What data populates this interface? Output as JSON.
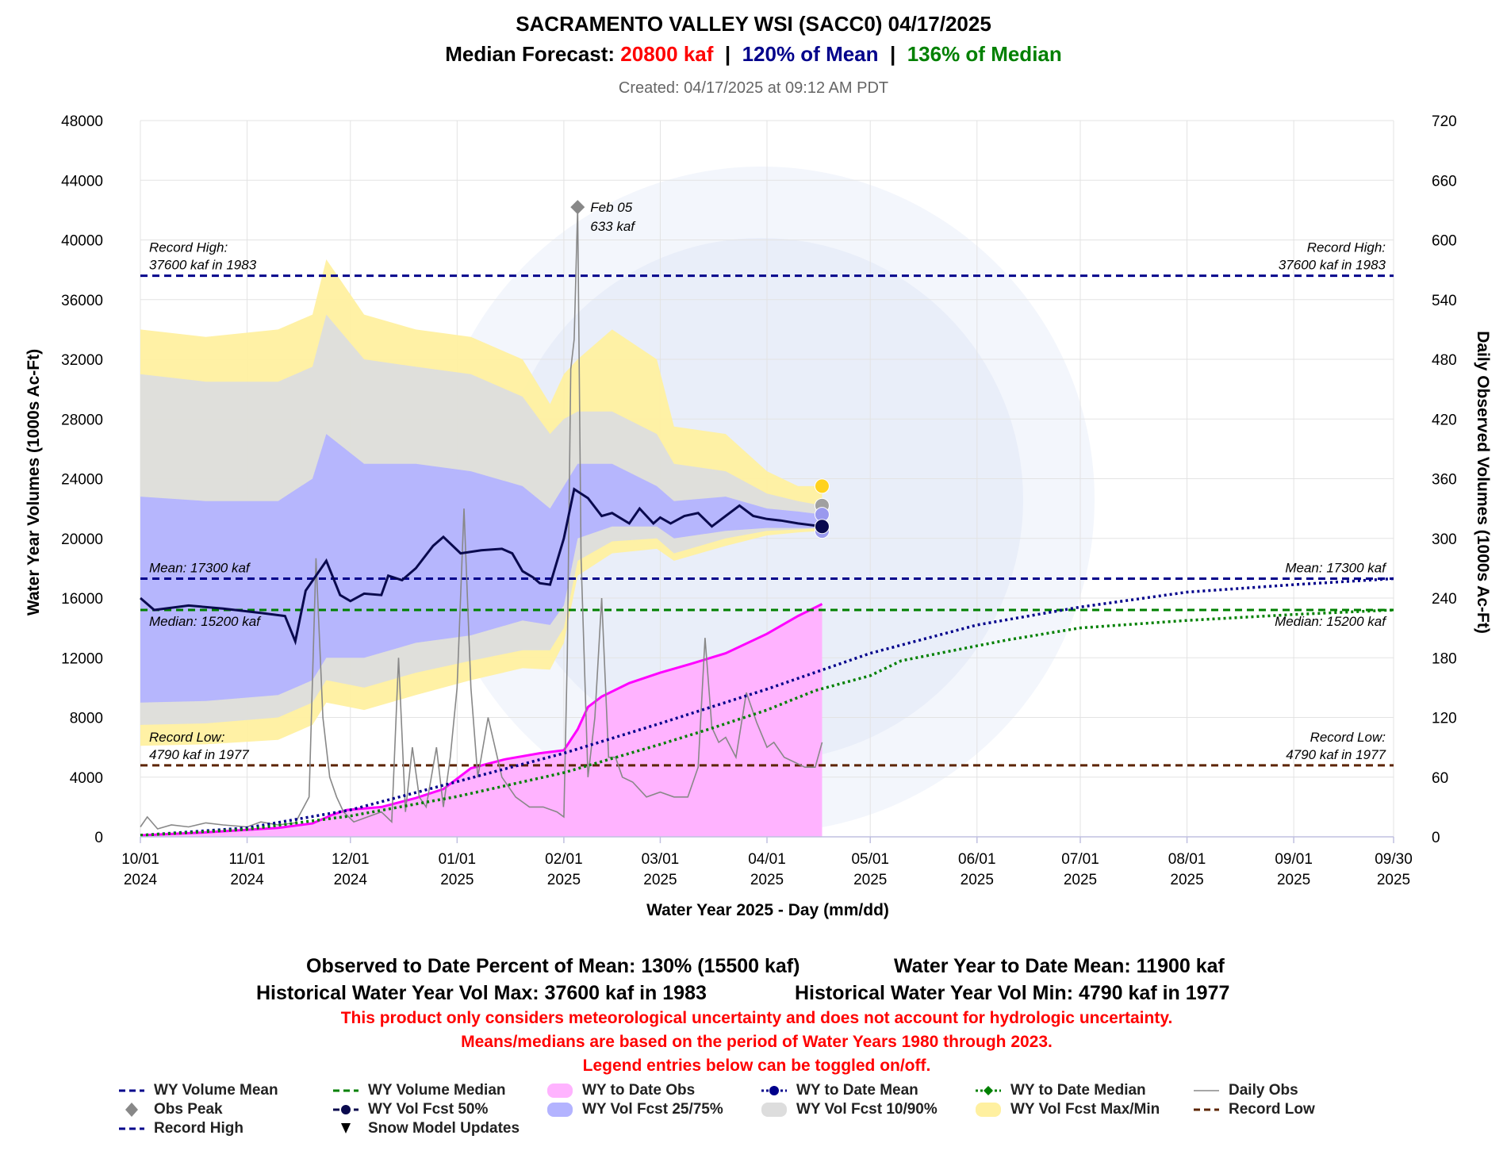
{
  "header": {
    "title": "SACRAMENTO VALLEY WSI (SACC0)  04/17/2025",
    "forecast_prefix": "Median Forecast: ",
    "forecast_value": "20800 kaf",
    "separator": "  |  ",
    "pct_mean": "120% of Mean",
    "pct_median": "136% of Median",
    "created": "Created: 04/17/2025 at 09:12 AM PDT"
  },
  "colors": {
    "forecast_red": "#ff0000",
    "mean_blue": "#00008b",
    "median_green": "#008000",
    "wy_to_date_obs": "#ff00ff",
    "wy_to_date_obs_fill": "#ffb3ff",
    "band_25_75": "#b3b3ff",
    "band_10_90": "#dddddd",
    "band_max_min": "#fff0a0",
    "record_low": "#5c2400",
    "daily_obs": "#888888",
    "fcst_50": "#0a0a4e"
  },
  "summary": {
    "line1a": "Observed to Date Percent of Mean: 130% (15500 kaf)",
    "line1b": "Water Year to Date Mean: 11900 kaf",
    "line2a": "Historical Water Year Vol Max: 37600 kaf in 1983",
    "line2b": "Historical Water Year Vol Min: 4790 kaf in 1977",
    "note1": "This product only considers meteorological uncertainty and does not account for hydrologic uncertainty.",
    "note2": "Means/medians are based on the period of Water Years 1980 through 2023.",
    "note3": "Legend entries below can be toggled on/off."
  },
  "legend": [
    {
      "label": "WY Volume Mean",
      "icon": "dashed-line",
      "color": "#00008b"
    },
    {
      "label": "WY Volume Median",
      "icon": "dashed-line",
      "color": "#008000"
    },
    {
      "label": "WY to Date Obs",
      "icon": "area",
      "color": "#ffb3ff"
    },
    {
      "label": "WY to Date Mean",
      "icon": "dotted-line-dot",
      "color": "#00008b"
    },
    {
      "label": "WY to Date Median",
      "icon": "dotted-line-diamond",
      "color": "#008000"
    },
    {
      "label": "Daily Obs",
      "icon": "thin-line",
      "color": "#888888"
    },
    {
      "label": "Obs Peak",
      "icon": "diamond",
      "color": "#888888"
    },
    {
      "label": "WY Vol Fcst 50%",
      "icon": "dashed-line-dot",
      "color": "#0a0a4e"
    },
    {
      "label": "WY Vol Fcst 25/75%",
      "icon": "area",
      "color": "#b3b3ff"
    },
    {
      "label": "WY Vol Fcst 10/90%",
      "icon": "area",
      "color": "#dddddd"
    },
    {
      "label": "WY Vol Fcst Max/Min",
      "icon": "area",
      "color": "#fff0a0"
    },
    {
      "label": "Record Low",
      "icon": "dashed-line",
      "color": "#5c2400"
    },
    {
      "label": "Record High",
      "icon": "dashed-line",
      "color": "#00008b"
    },
    {
      "label": "Snow Model Updates",
      "icon": "triangle-down",
      "color": "#000000"
    }
  ],
  "chart_data": {
    "type": "line",
    "title": "SACRAMENTO VALLEY WSI (SACC0)  04/17/2025",
    "xlabel": "Water Year 2025 - Day (mm/dd)",
    "ylabel": "Water Year Volumes (1000s Ac-Ft)",
    "y2label": "Daily Observed Volumes (1000s Ac-Ft)",
    "xlim": [
      "2024-10-01",
      "2025-09-30"
    ],
    "ylim": [
      0,
      48000
    ],
    "y2lim": [
      0,
      720
    ],
    "y_ticks": [
      0,
      4000,
      8000,
      12000,
      16000,
      20000,
      24000,
      28000,
      32000,
      36000,
      40000,
      44000,
      48000
    ],
    "y2_ticks": [
      0,
      60,
      120,
      180,
      240,
      300,
      360,
      420,
      480,
      540,
      600,
      660,
      720
    ],
    "x_ticks": [
      {
        "date": "2024-10-01",
        "l1": "10/01",
        "l2": "2024"
      },
      {
        "date": "2024-11-01",
        "l1": "11/01",
        "l2": "2024"
      },
      {
        "date": "2024-12-01",
        "l1": "12/01",
        "l2": "2024"
      },
      {
        "date": "2025-01-01",
        "l1": "01/01",
        "l2": "2025"
      },
      {
        "date": "2025-02-01",
        "l1": "02/01",
        "l2": "2025"
      },
      {
        "date": "2025-03-01",
        "l1": "03/01",
        "l2": "2025"
      },
      {
        "date": "2025-04-01",
        "l1": "04/01",
        "l2": "2025"
      },
      {
        "date": "2025-05-01",
        "l1": "05/01",
        "l2": "2025"
      },
      {
        "date": "2025-06-01",
        "l1": "06/01",
        "l2": "2025"
      },
      {
        "date": "2025-07-01",
        "l1": "07/01",
        "l2": "2025"
      },
      {
        "date": "2025-08-01",
        "l1": "08/01",
        "l2": "2025"
      },
      {
        "date": "2025-09-01",
        "l1": "09/01",
        "l2": "2025"
      },
      {
        "date": "2025-09-30",
        "l1": "09/30",
        "l2": "2025"
      }
    ],
    "grid": true,
    "reference_lines": [
      {
        "name": "Record High",
        "value": 37600,
        "color": "#00008b",
        "label1": "Record High:",
        "label2": "37600 kaf in 1983"
      },
      {
        "name": "Mean",
        "value": 17300,
        "color": "#00008b",
        "label1": "Mean: 17300 kaf",
        "label2": ""
      },
      {
        "name": "Median",
        "value": 15200,
        "color": "#008000",
        "label1": "Median: 15200 kaf",
        "label2": ""
      },
      {
        "name": "Record Low",
        "value": 4790,
        "color": "#5c2400",
        "label1": "Record Low:",
        "label2": "4790 kaf in 1977"
      }
    ],
    "obs_peak": {
      "date": "2025-02-05",
      "value": 633,
      "label1": "Feb 05",
      "label2": "633 kaf"
    },
    "series": [
      {
        "name": "WY Vol Fcst Max/Min",
        "kind": "band",
        "x": [
          "2024-10-01",
          "2024-10-20",
          "2024-11-10",
          "2024-11-20",
          "2024-11-24",
          "2024-12-05",
          "2024-12-20",
          "2025-01-05",
          "2025-01-20",
          "2025-01-28",
          "2025-02-01",
          "2025-02-05",
          "2025-02-15",
          "2025-02-28",
          "2025-03-05",
          "2025-03-20",
          "2025-04-01",
          "2025-04-10",
          "2025-04-17"
        ],
        "high": [
          34000,
          33500,
          34000,
          35000,
          38700,
          35000,
          34000,
          33500,
          32000,
          29000,
          31000,
          32000,
          34000,
          32000,
          27500,
          27000,
          24500,
          23500,
          23500
        ],
        "low": [
          6100,
          6200,
          6500,
          7500,
          9000,
          8500,
          9500,
          10500,
          11300,
          11200,
          13000,
          17500,
          19000,
          19300,
          18500,
          19500,
          20200,
          20400,
          20500
        ]
      },
      {
        "name": "WY Vol Fcst 10/90%",
        "kind": "band",
        "x": [
          "2024-10-01",
          "2024-10-20",
          "2024-11-10",
          "2024-11-20",
          "2024-11-24",
          "2024-12-05",
          "2024-12-20",
          "2025-01-05",
          "2025-01-20",
          "2025-01-28",
          "2025-02-01",
          "2025-02-05",
          "2025-02-15",
          "2025-02-28",
          "2025-03-05",
          "2025-03-20",
          "2025-04-01",
          "2025-04-10",
          "2025-04-17"
        ],
        "high": [
          31000,
          30500,
          30500,
          31500,
          35000,
          32000,
          31500,
          31000,
          29500,
          27000,
          28000,
          28500,
          28500,
          27000,
          25000,
          24500,
          23000,
          22500,
          22200
        ],
        "low": [
          7500,
          7600,
          8000,
          9000,
          10500,
          10000,
          11000,
          11800,
          12500,
          12500,
          14000,
          18500,
          19800,
          20000,
          19000,
          20000,
          20500,
          20600,
          20700
        ]
      },
      {
        "name": "WY Vol Fcst 25/75%",
        "kind": "band",
        "x": [
          "2024-10-01",
          "2024-10-20",
          "2024-11-10",
          "2024-11-20",
          "2024-11-24",
          "2024-12-05",
          "2024-12-20",
          "2025-01-05",
          "2025-01-20",
          "2025-01-28",
          "2025-02-01",
          "2025-02-05",
          "2025-02-15",
          "2025-02-28",
          "2025-03-05",
          "2025-03-20",
          "2025-04-01",
          "2025-04-10",
          "2025-04-17"
        ],
        "high": [
          22800,
          22500,
          22500,
          24000,
          27000,
          25000,
          25000,
          24500,
          23500,
          22000,
          23500,
          25000,
          25000,
          23500,
          22500,
          22800,
          22000,
          21800,
          21600
        ],
        "low": [
          9000,
          9100,
          9500,
          10500,
          12000,
          12000,
          13000,
          13500,
          14500,
          14200,
          15500,
          20000,
          20800,
          20800,
          20000,
          20500,
          20700,
          20700,
          20700
        ]
      },
      {
        "name": "WY Vol Fcst 50%",
        "kind": "line",
        "x": [
          "2024-10-01",
          "2024-10-05",
          "2024-10-15",
          "2024-10-25",
          "2024-11-05",
          "2024-11-12",
          "2024-11-15",
          "2024-11-18",
          "2024-11-21",
          "2024-11-24",
          "2024-11-28",
          "2024-12-01",
          "2024-12-05",
          "2024-12-10",
          "2024-12-12",
          "2024-12-16",
          "2024-12-20",
          "2024-12-25",
          "2024-12-28",
          "2025-01-02",
          "2025-01-08",
          "2025-01-14",
          "2025-01-17",
          "2025-01-20",
          "2025-01-23",
          "2025-01-25",
          "2025-01-28",
          "2025-02-01",
          "2025-02-04",
          "2025-02-08",
          "2025-02-12",
          "2025-02-15",
          "2025-02-20",
          "2025-02-23",
          "2025-02-27",
          "2025-03-01",
          "2025-03-04",
          "2025-03-08",
          "2025-03-12",
          "2025-03-16",
          "2025-03-20",
          "2025-03-24",
          "2025-03-28",
          "2025-04-01",
          "2025-04-05",
          "2025-04-10",
          "2025-04-17"
        ],
        "values": [
          16000,
          15200,
          15500,
          15300,
          15000,
          14800,
          13100,
          16500,
          17500,
          18500,
          16200,
          15800,
          16300,
          16200,
          17500,
          17200,
          18000,
          19500,
          20100,
          19000,
          19200,
          19300,
          19000,
          17800,
          17400,
          17000,
          16900,
          20000,
          23300,
          22700,
          21500,
          21700,
          21000,
          22000,
          21000,
          21400,
          21000,
          21500,
          21700,
          20800,
          21500,
          22200,
          21500,
          21300,
          21200,
          21000,
          20800
        ]
      },
      {
        "name": "WY to Date Obs",
        "kind": "area",
        "x": [
          "2024-10-01",
          "2024-10-20",
          "2024-11-10",
          "2024-11-20",
          "2024-11-26",
          "2024-11-30",
          "2024-12-10",
          "2024-12-20",
          "2024-12-28",
          "2025-01-05",
          "2025-01-15",
          "2025-01-25",
          "2025-02-01",
          "2025-02-05",
          "2025-02-08",
          "2025-02-12",
          "2025-02-20",
          "2025-03-01",
          "2025-03-10",
          "2025-03-20",
          "2025-04-01",
          "2025-04-10",
          "2025-04-17"
        ],
        "values": [
          100,
          300,
          600,
          900,
          1500,
          1800,
          2000,
          2600,
          3200,
          4600,
          5200,
          5600,
          5800,
          7200,
          8700,
          9400,
          10300,
          11000,
          11600,
          12300,
          13600,
          14800,
          15600
        ]
      },
      {
        "name": "WY to Date Mean",
        "kind": "dotted",
        "x": [
          "2024-10-01",
          "2024-11-01",
          "2024-12-01",
          "2025-01-01",
          "2025-02-01",
          "2025-03-01",
          "2025-04-01",
          "2025-05-01",
          "2025-06-01",
          "2025-07-01",
          "2025-08-01",
          "2025-09-01",
          "2025-09-30"
        ],
        "values": [
          100,
          600,
          1800,
          3700,
          5600,
          7600,
          9900,
          12300,
          14200,
          15400,
          16400,
          16900,
          17300
        ]
      },
      {
        "name": "WY to Date Median",
        "kind": "dotted",
        "x": [
          "2024-10-01",
          "2024-11-01",
          "2024-12-01",
          "2025-01-01",
          "2025-02-01",
          "2025-03-01",
          "2025-03-15",
          "2025-04-01",
          "2025-04-15",
          "2025-05-01",
          "2025-05-10",
          "2025-06-01",
          "2025-06-10",
          "2025-07-01",
          "2025-08-01",
          "2025-09-01",
          "2025-09-30"
        ],
        "values": [
          100,
          500,
          1400,
          2700,
          4300,
          6200,
          7200,
          8500,
          9800,
          10800,
          11800,
          12800,
          13200,
          14000,
          14500,
          14900,
          15200
        ]
      },
      {
        "name": "Daily Obs",
        "kind": "thin",
        "axis": "y2",
        "x": [
          "2024-10-01",
          "2024-10-03",
          "2024-10-06",
          "2024-10-10",
          "2024-10-15",
          "2024-10-20",
          "2024-10-25",
          "2024-11-01",
          "2024-11-05",
          "2024-11-10",
          "2024-11-15",
          "2024-11-19",
          "2024-11-21",
          "2024-11-23",
          "2024-11-25",
          "2024-11-27",
          "2024-11-29",
          "2024-12-02",
          "2024-12-06",
          "2024-12-10",
          "2024-12-13",
          "2024-12-15",
          "2024-12-17",
          "2024-12-19",
          "2024-12-21",
          "2024-12-23",
          "2024-12-26",
          "2024-12-28",
          "2024-12-30",
          "2025-01-01",
          "2025-01-03",
          "2025-01-05",
          "2025-01-07",
          "2025-01-10",
          "2025-01-14",
          "2025-01-18",
          "2025-01-22",
          "2025-01-26",
          "2025-01-30",
          "2025-02-01",
          "2025-02-02",
          "2025-02-03",
          "2025-02-04",
          "2025-02-05",
          "2025-02-06",
          "2025-02-08",
          "2025-02-10",
          "2025-02-12",
          "2025-02-14",
          "2025-02-16",
          "2025-02-18",
          "2025-02-21",
          "2025-02-25",
          "2025-03-01",
          "2025-03-05",
          "2025-03-09",
          "2025-03-12",
          "2025-03-14",
          "2025-03-16",
          "2025-03-18",
          "2025-03-20",
          "2025-03-23",
          "2025-03-26",
          "2025-03-29",
          "2025-04-01",
          "2025-04-03",
          "2025-04-06",
          "2025-04-09",
          "2025-04-12",
          "2025-04-15",
          "2025-04-17"
        ],
        "values": [
          10,
          20,
          8,
          12,
          10,
          14,
          12,
          10,
          15,
          12,
          14,
          40,
          280,
          120,
          60,
          40,
          25,
          15,
          20,
          25,
          15,
          180,
          25,
          90,
          40,
          30,
          90,
          30,
          80,
          150,
          330,
          150,
          60,
          120,
          60,
          40,
          30,
          30,
          25,
          20,
          180,
          470,
          500,
          633,
          280,
          60,
          120,
          240,
          80,
          80,
          60,
          55,
          40,
          45,
          40,
          40,
          70,
          200,
          110,
          95,
          100,
          80,
          145,
          115,
          90,
          95,
          80,
          75,
          70,
          70,
          95
        ]
      }
    ]
  }
}
